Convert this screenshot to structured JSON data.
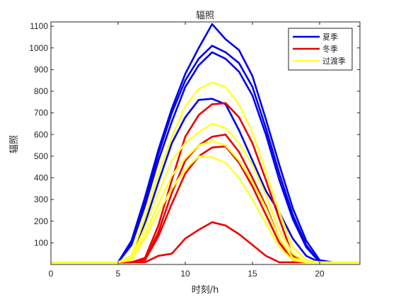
{
  "chart_data": {
    "type": "line",
    "title": "辐照",
    "xlabel": "时刻/h",
    "ylabel": "辐照",
    "xlim": [
      0,
      23
    ],
    "ylim": [
      0,
      1120
    ],
    "xticks": [
      0,
      5,
      10,
      15,
      20
    ],
    "yticks": [
      100,
      200,
      300,
      400,
      500,
      600,
      700,
      800,
      900,
      1000,
      1100
    ],
    "grid": false,
    "legend_position": "top-right",
    "x": [
      0,
      1,
      2,
      3,
      4,
      5,
      6,
      7,
      8,
      9,
      10,
      11,
      12,
      13,
      14,
      15,
      16,
      17,
      18,
      19,
      20,
      21,
      22,
      23
    ],
    "legend": [
      {
        "label": "夏季",
        "color": "#0000ee"
      },
      {
        "label": "冬季",
        "color": "#ee0000"
      },
      {
        "label": "过渡季",
        "color": "#ffff33"
      }
    ],
    "series": [
      {
        "group": "夏季",
        "color": "#0000ee",
        "values": [
          10,
          10,
          10,
          10,
          10,
          10,
          110,
          310,
          530,
          720,
          880,
          1000,
          1110,
          1040,
          990,
          870,
          670,
          460,
          260,
          110,
          20,
          10,
          10,
          10
        ]
      },
      {
        "group": "夏季",
        "color": "#0000ee",
        "values": [
          10,
          10,
          10,
          10,
          10,
          10,
          100,
          290,
          510,
          700,
          850,
          950,
          1010,
          980,
          930,
          820,
          630,
          420,
          230,
          90,
          10,
          10,
          10,
          10
        ]
      },
      {
        "group": "夏季",
        "color": "#0000ee",
        "values": [
          10,
          10,
          10,
          10,
          10,
          10,
          90,
          270,
          480,
          660,
          820,
          920,
          980,
          950,
          890,
          780,
          600,
          390,
          210,
          80,
          10,
          10,
          10,
          10
        ]
      },
      {
        "group": "夏季",
        "color": "#0000ee",
        "values": [
          10,
          10,
          10,
          10,
          10,
          10,
          40,
          190,
          380,
          560,
          680,
          760,
          765,
          740,
          620,
          480,
          340,
          240,
          120,
          40,
          10,
          10,
          10,
          10
        ]
      },
      {
        "group": "冬季",
        "color": "#ee0000",
        "values": [
          10,
          10,
          10,
          10,
          10,
          10,
          10,
          30,
          180,
          390,
          590,
          690,
          740,
          745,
          680,
          560,
          390,
          210,
          40,
          10,
          10,
          10,
          10,
          10
        ]
      },
      {
        "group": "冬季",
        "color": "#ee0000",
        "values": [
          10,
          10,
          10,
          10,
          10,
          10,
          10,
          20,
          150,
          330,
          480,
          550,
          590,
          600,
          520,
          400,
          270,
          120,
          20,
          10,
          10,
          10,
          10,
          10
        ]
      },
      {
        "group": "冬季",
        "color": "#ee0000",
        "values": [
          10,
          10,
          10,
          10,
          10,
          10,
          10,
          20,
          130,
          280,
          420,
          500,
          540,
          545,
          470,
          360,
          230,
          100,
          20,
          10,
          10,
          10,
          10,
          10
        ]
      },
      {
        "group": "冬季",
        "color": "#ee0000",
        "values": [
          10,
          10,
          10,
          10,
          10,
          10,
          10,
          10,
          40,
          50,
          120,
          160,
          195,
          180,
          140,
          90,
          40,
          10,
          10,
          10,
          10,
          10,
          10,
          10
        ]
      },
      {
        "group": "过渡季",
        "color": "#ffff33",
        "values": [
          10,
          10,
          10,
          10,
          10,
          10,
          40,
          220,
          420,
          590,
          730,
          810,
          840,
          820,
          740,
          610,
          430,
          240,
          80,
          20,
          10,
          10,
          10,
          10
        ]
      },
      {
        "group": "过渡季",
        "color": "#ffff33",
        "values": [
          10,
          10,
          10,
          10,
          10,
          10,
          30,
          170,
          330,
          480,
          560,
          610,
          650,
          630,
          560,
          460,
          320,
          160,
          50,
          10,
          10,
          10,
          10,
          10
        ]
      },
      {
        "group": "过渡季",
        "color": "#ffff33",
        "values": [
          10,
          10,
          10,
          10,
          10,
          10,
          20,
          140,
          280,
          410,
          490,
          550,
          570,
          550,
          480,
          380,
          260,
          120,
          30,
          10,
          10,
          10,
          10,
          10
        ]
      },
      {
        "group": "过渡季",
        "color": "#ffff33",
        "values": [
          10,
          10,
          10,
          10,
          10,
          10,
          20,
          120,
          240,
          350,
          440,
          500,
          495,
          470,
          400,
          300,
          190,
          80,
          20,
          10,
          10,
          10,
          10,
          10
        ]
      }
    ]
  }
}
